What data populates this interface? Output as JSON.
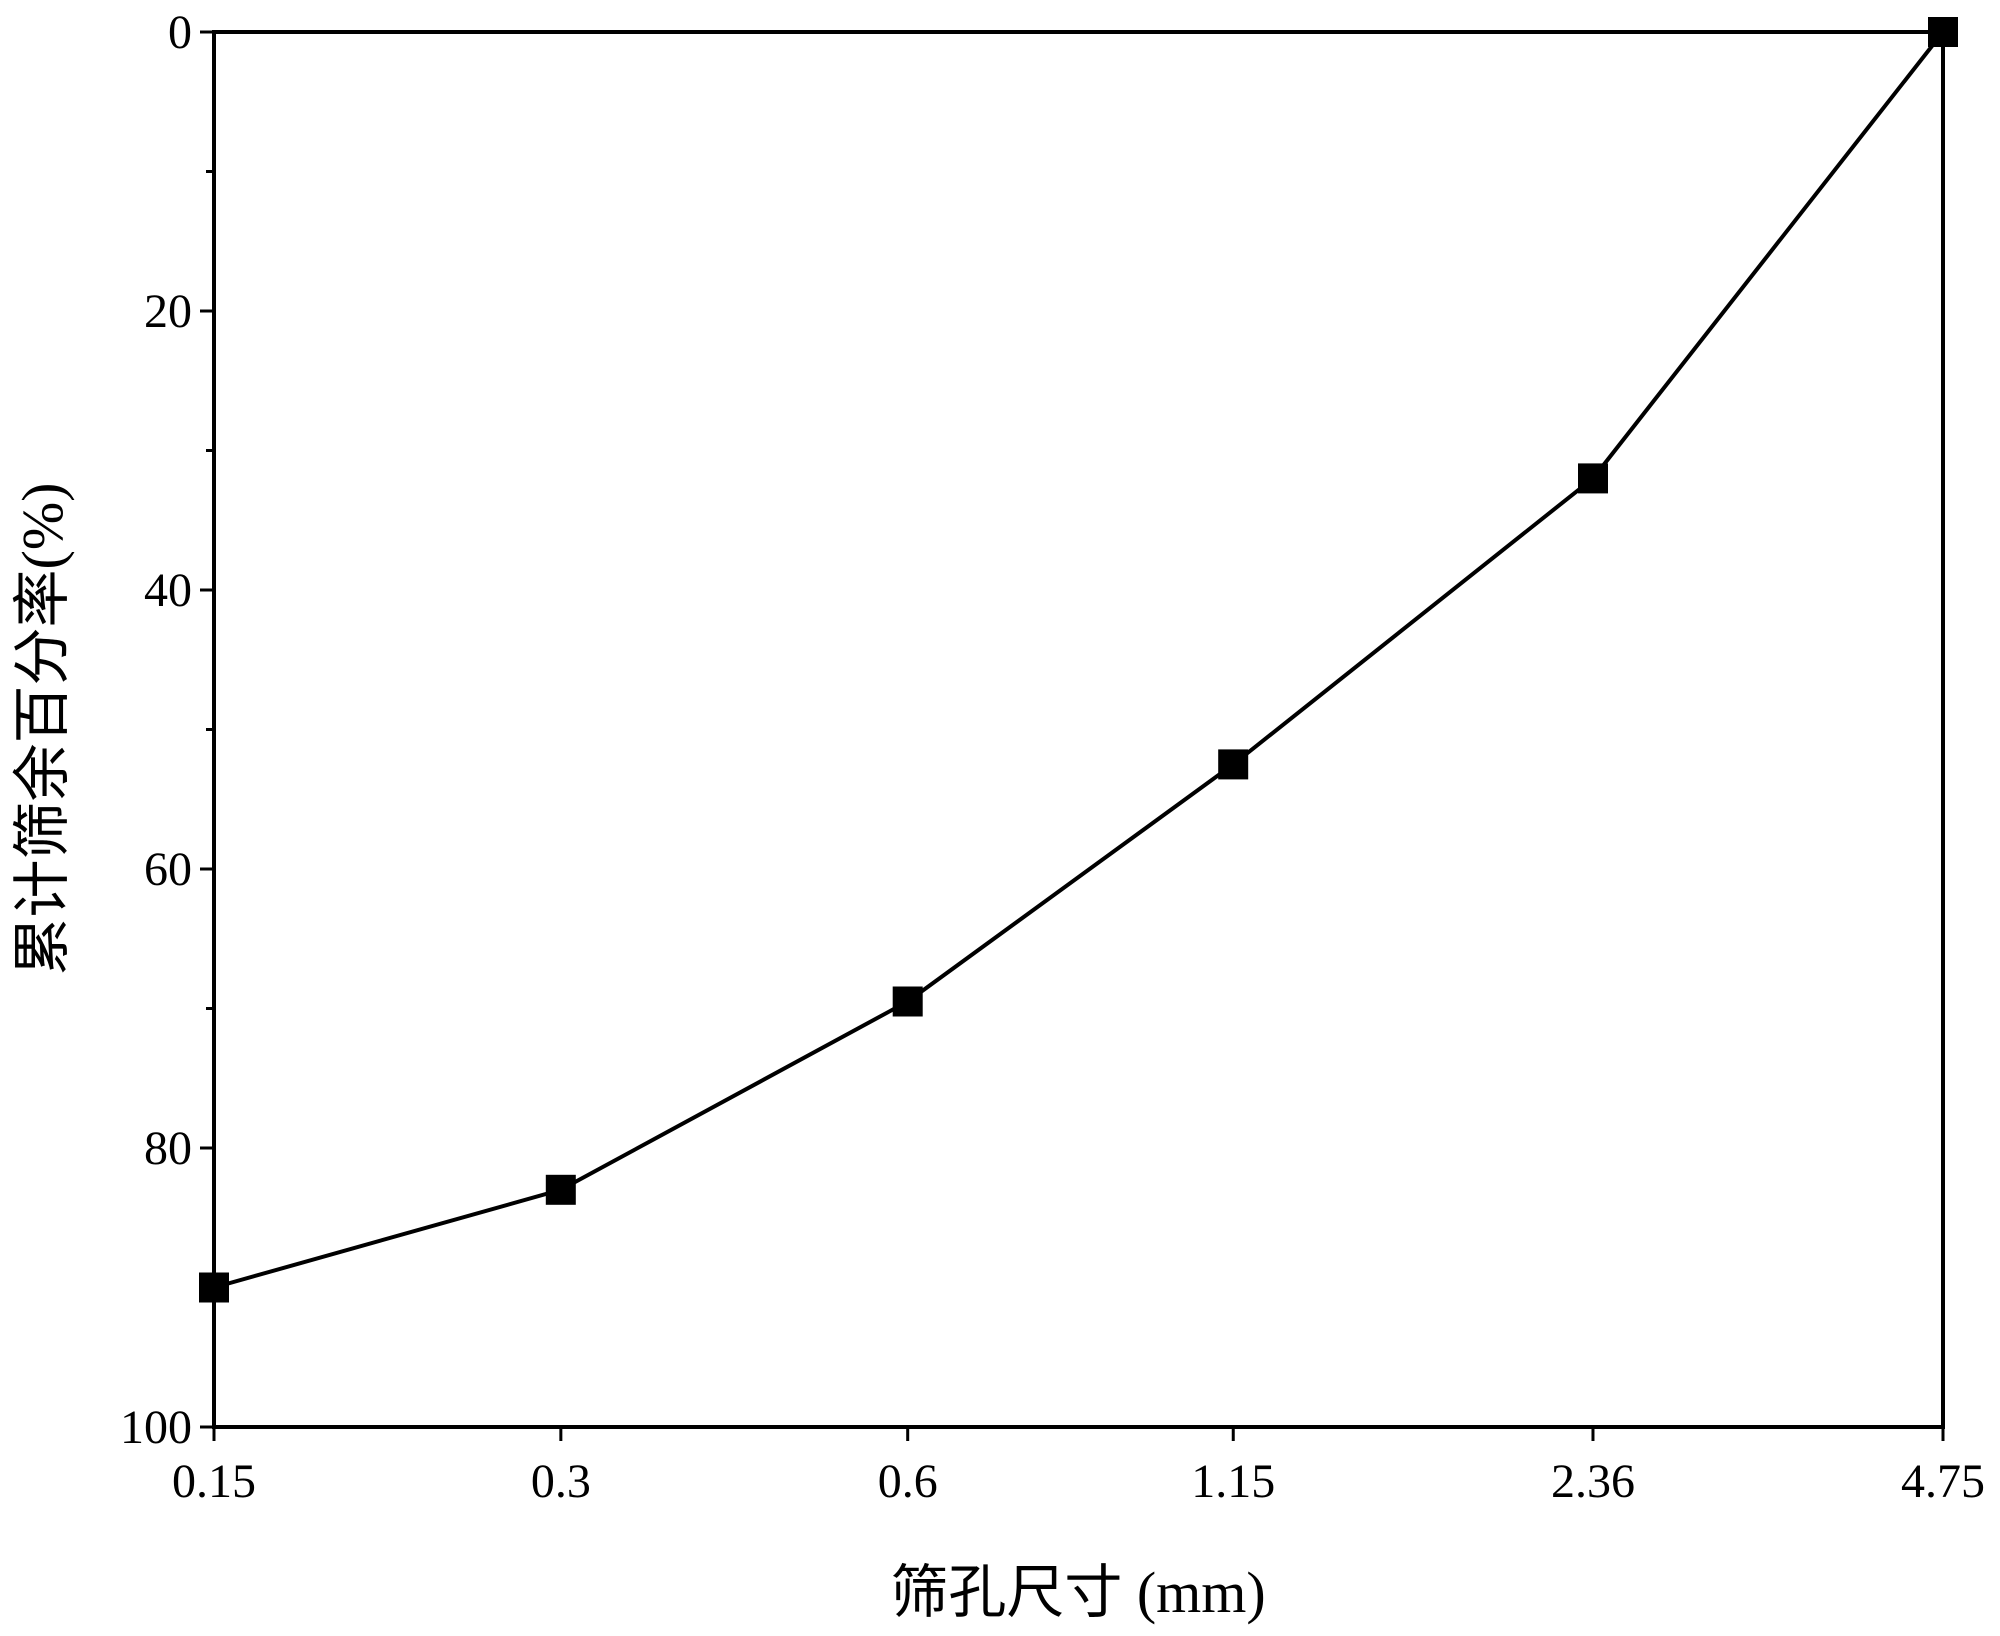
{
  "chart_data": {
    "type": "line",
    "title": "",
    "xlabel": "筛孔尺寸 (mm)",
    "ylabel": "累计筛余百分率(%)",
    "x_categories": [
      "0.15",
      "0.3",
      "0.6",
      "1.15",
      "2.36",
      "4.75"
    ],
    "x_positions": [
      0.15,
      0.3,
      0.6,
      1.15,
      2.36,
      4.75
    ],
    "x_scale": "log",
    "x_range": [
      0.15,
      4.75
    ],
    "y_range": [
      0,
      100
    ],
    "y_inverted": true,
    "y_ticks": [
      0,
      20,
      40,
      60,
      80,
      100
    ],
    "y_minor_ticks": [
      10,
      30,
      50,
      70,
      90
    ],
    "grid": false,
    "legend": "none",
    "series": [
      {
        "marker": "square",
        "color": "#000000",
        "points": [
          {
            "x": 0.15,
            "y": 90
          },
          {
            "x": 0.3,
            "y": 83
          },
          {
            "x": 0.6,
            "y": 69.5
          },
          {
            "x": 1.15,
            "y": 52.5
          },
          {
            "x": 2.36,
            "y": 32
          },
          {
            "x": 4.75,
            "y": 0
          }
        ]
      }
    ]
  }
}
